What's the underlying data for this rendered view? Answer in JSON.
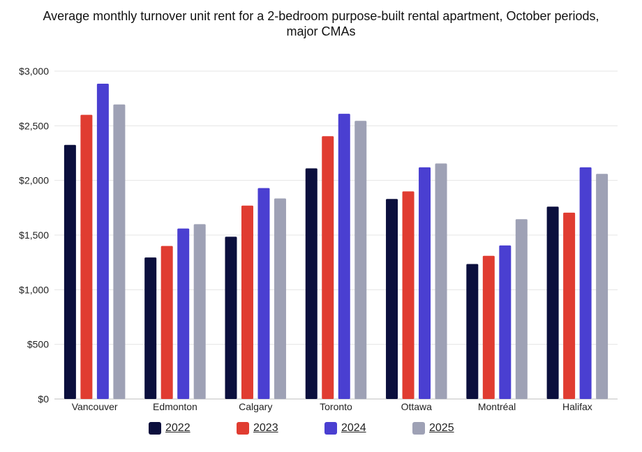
{
  "chart_data": {
    "type": "bar",
    "title": "Average monthly turnover unit rent for a 2-bedroom purpose-built rental apartment, October periods, major CMAs",
    "xlabel": "",
    "ylabel": "",
    "ylim": [
      0,
      3000
    ],
    "yticks": [
      0,
      500,
      1000,
      1500,
      2000,
      2500,
      3000
    ],
    "ytick_labels": [
      "$0",
      "$500",
      "$1,000",
      "$1,500",
      "$2,000",
      "$2,500",
      "$3,000"
    ],
    "grid": true,
    "legend_position": "bottom",
    "categories": [
      "Vancouver",
      "Edmonton",
      "Calgary",
      "Toronto",
      "Ottawa",
      "Montréal",
      "Halifax"
    ],
    "series": [
      {
        "name": "2022",
        "color": "#0b0f3d",
        "values": [
          2325,
          1295,
          1485,
          2110,
          1830,
          1235,
          1760
        ]
      },
      {
        "name": "2023",
        "color": "#e03c31",
        "values": [
          2600,
          1400,
          1770,
          2405,
          1900,
          1310,
          1705
        ]
      },
      {
        "name": "2024",
        "color": "#4a3fd1",
        "values": [
          2885,
          1560,
          1930,
          2610,
          2120,
          1405,
          2120
        ]
      },
      {
        "name": "2025",
        "color": "#9ea1b5",
        "values": [
          2695,
          1600,
          1835,
          2545,
          2155,
          1645,
          2060
        ]
      }
    ]
  }
}
